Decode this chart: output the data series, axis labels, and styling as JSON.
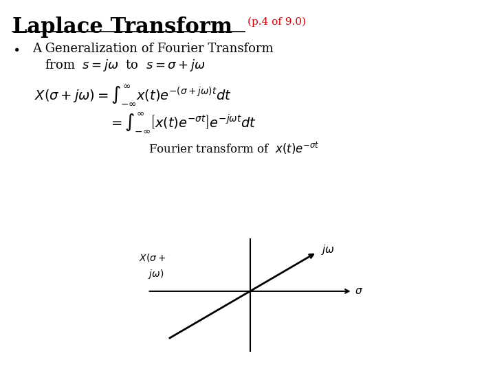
{
  "title_main": "Laplace Transform",
  "title_sub": "(p.4 of 9.0)",
  "title_main_color": "#000000",
  "title_sub_color": "#cc0000",
  "background_color": "#ffffff",
  "bullet_text": "A Generalization of Fourier Transform",
  "from_line": "from  $s = j\\omega$  to  $s = \\sigma + j\\omega$",
  "eq1": "$X(\\sigma + j\\omega) = \\int_{-\\infty}^{\\infty} x(t)e^{-(\\sigma+j\\omega)t}dt$",
  "eq2": "$= \\int_{-\\infty}^{\\infty}\\left[x(t)e^{-\\sigma t}\\right]e^{-j\\omega t}dt$",
  "fourier_text": "Fourier transform of  $x(t)e^{-\\sigma t}$",
  "title_fontsize": 22,
  "title_sub_fontsize": 11,
  "bullet_fontsize": 13,
  "from_fontsize": 13,
  "eq_fontsize": 14,
  "fourier_fontsize": 12,
  "axis_fontsize": 11
}
